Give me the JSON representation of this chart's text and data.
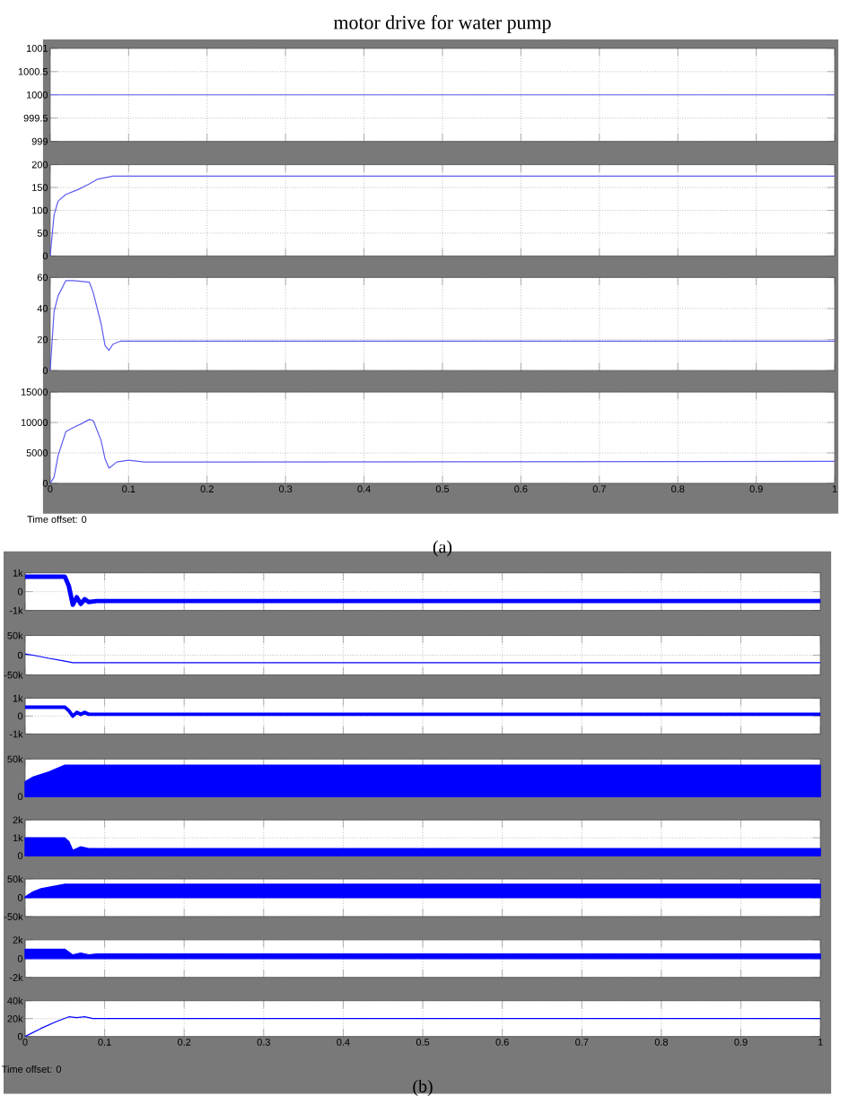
{
  "chart_data": [
    {
      "type": "line",
      "title": "motor drive for water pump",
      "xlim": [
        0,
        1
      ],
      "xticks": [
        0,
        0.1,
        0.2,
        0.3,
        0.4,
        0.5,
        0.6,
        0.7,
        0.8,
        0.9,
        1
      ],
      "ylim": [
        999,
        1001
      ],
      "yticks": [
        999,
        999.5,
        1000,
        1000.5,
        1001
      ],
      "grid": true,
      "tick_labels": "y",
      "series": [
        {
          "color": "#5c5cf0",
          "x": [
            0,
            1
          ],
          "values": [
            1000,
            1000
          ]
        }
      ]
    },
    {
      "type": "line",
      "xlim": [
        0,
        1
      ],
      "xticks": [
        0,
        0.1,
        0.2,
        0.3,
        0.4,
        0.5,
        0.6,
        0.7,
        0.8,
        0.9,
        1
      ],
      "ylim": [
        0,
        200
      ],
      "yticks": [
        0,
        50,
        100,
        150,
        200
      ],
      "grid": true,
      "tick_labels": "y",
      "series": [
        {
          "color": "#5c5cf0",
          "x": [
            0,
            0.005,
            0.01,
            0.02,
            0.035,
            0.05,
            0.06,
            0.08,
            1
          ],
          "values": [
            0,
            90,
            120,
            135,
            145,
            158,
            168,
            175,
            175
          ]
        }
      ]
    },
    {
      "type": "line",
      "xlim": [
        0,
        1
      ],
      "xticks": [
        0,
        0.1,
        0.2,
        0.3,
        0.4,
        0.5,
        0.6,
        0.7,
        0.8,
        0.9,
        1
      ],
      "ylim": [
        0,
        60
      ],
      "yticks": [
        0,
        20,
        40,
        60
      ],
      "grid": true,
      "tick_labels": "y",
      "series": [
        {
          "color": "#5c5cf0",
          "x": [
            0,
            0.005,
            0.01,
            0.02,
            0.03,
            0.05,
            0.055,
            0.065,
            0.07,
            0.075,
            0.08,
            0.09,
            0.1,
            1
          ],
          "values": [
            0,
            38,
            48,
            58,
            58,
            57,
            50,
            30,
            16,
            13,
            17,
            19,
            19,
            19
          ]
        }
      ]
    },
    {
      "type": "line",
      "xlim": [
        0,
        1
      ],
      "xticks": [
        0,
        0.1,
        0.2,
        0.3,
        0.4,
        0.5,
        0.6,
        0.7,
        0.8,
        0.9,
        1
      ],
      "ylim": [
        0,
        15000
      ],
      "yticks": [
        0,
        5000,
        10000,
        15000
      ],
      "grid": true,
      "annotations": [
        "Time offset:  0",
        "(a)"
      ],
      "series": [
        {
          "color": "#5c5cf0",
          "x": [
            0,
            0.005,
            0.01,
            0.02,
            0.03,
            0.04,
            0.05,
            0.055,
            0.065,
            0.07,
            0.075,
            0.085,
            0.1,
            0.12,
            1
          ],
          "values": [
            0,
            1000,
            4500,
            8500,
            9200,
            9800,
            10500,
            10300,
            7000,
            4000,
            2500,
            3500,
            3800,
            3500,
            3600
          ]
        }
      ]
    },
    {
      "type": "line",
      "xlim": [
        0,
        1
      ],
      "xticks": [
        0,
        0.1,
        0.2,
        0.3,
        0.4,
        0.5,
        0.6,
        0.7,
        0.8,
        0.9,
        1
      ],
      "ylim": [
        -1000,
        1000
      ],
      "yticks": [
        {
          "value": -1000,
          "label": "-1k"
        },
        0,
        {
          "value": 1000,
          "label": "1k"
        }
      ],
      "grid": true,
      "tick_labels": "y",
      "series": [
        {
          "color": "#0000ff",
          "x": [
            0,
            0.05,
            0.055,
            0.06,
            0.065,
            0.07,
            0.075,
            0.08,
            0.09,
            0.1,
            1
          ],
          "values": [
            800,
            800,
            300,
            -700,
            -300,
            -650,
            -400,
            -550,
            -500,
            -500,
            -500
          ]
        }
      ]
    },
    {
      "type": "line",
      "xlim": [
        0,
        1
      ],
      "xticks": [
        0,
        0.1,
        0.2,
        0.3,
        0.4,
        0.5,
        0.6,
        0.7,
        0.8,
        0.9,
        1
      ],
      "ylim": [
        -50000,
        50000
      ],
      "yticks": [
        {
          "value": -50000,
          "label": "-50k"
        },
        0,
        {
          "value": 50000,
          "label": "50k"
        }
      ],
      "grid": true,
      "tick_labels": "y",
      "series": [
        {
          "color": "#0000ff",
          "x": [
            0,
            0.01,
            0.03,
            0.05,
            0.06,
            1
          ],
          "values": [
            3000,
            0,
            -8000,
            -15000,
            -19000,
            -19000
          ]
        }
      ]
    },
    {
      "type": "line",
      "xlim": [
        0,
        1
      ],
      "xticks": [
        0,
        0.1,
        0.2,
        0.3,
        0.4,
        0.5,
        0.6,
        0.7,
        0.8,
        0.9,
        1
      ],
      "ylim": [
        -1000,
        1000
      ],
      "yticks": [
        {
          "value": -1000,
          "label": "-1k"
        },
        0,
        {
          "value": 1000,
          "label": "1k"
        }
      ],
      "grid": true,
      "tick_labels": "y",
      "series": [
        {
          "color": "#0000ff",
          "x": [
            0,
            0.05,
            0.055,
            0.06,
            0.065,
            0.07,
            0.075,
            0.08,
            0.09,
            0.1,
            1
          ],
          "values": [
            500,
            500,
            300,
            0,
            200,
            100,
            200,
            100,
            100,
            100,
            100
          ]
        }
      ]
    },
    {
      "type": "area",
      "xlim": [
        0,
        1
      ],
      "xticks": [
        0,
        0.1,
        0.2,
        0.3,
        0.4,
        0.5,
        0.6,
        0.7,
        0.8,
        0.9,
        1
      ],
      "ylim": [
        0,
        50000
      ],
      "yticks": [
        0,
        {
          "value": 50000,
          "label": "50k"
        }
      ],
      "grid": true,
      "tick_labels": "y",
      "series": [
        {
          "color": "#0000ff",
          "x": [
            0,
            0.01,
            0.03,
            0.05,
            0.06,
            1
          ],
          "values": [
            20000,
            26000,
            33000,
            42000,
            42000,
            42000
          ]
        }
      ]
    },
    {
      "type": "area",
      "xlim": [
        0,
        1
      ],
      "xticks": [
        0,
        0.1,
        0.2,
        0.3,
        0.4,
        0.5,
        0.6,
        0.7,
        0.8,
        0.9,
        1
      ],
      "ylim": [
        0,
        2000
      ],
      "yticks": [
        0,
        {
          "value": 1000,
          "label": "1k"
        },
        {
          "value": 2000,
          "label": "2k"
        }
      ],
      "grid": true,
      "tick_labels": "y",
      "series": [
        {
          "color": "#0000ff",
          "x": [
            0,
            0.05,
            0.055,
            0.06,
            0.07,
            0.08,
            0.09,
            0.1,
            1
          ],
          "values": [
            1000,
            1000,
            800,
            300,
            500,
            400,
            400,
            400,
            400
          ]
        }
      ]
    },
    {
      "type": "area",
      "xlim": [
        0,
        1
      ],
      "xticks": [
        0,
        0.1,
        0.2,
        0.3,
        0.4,
        0.5,
        0.6,
        0.7,
        0.8,
        0.9,
        1
      ],
      "ylim": [
        -50000,
        50000
      ],
      "yticks": [
        {
          "value": -50000,
          "label": "-50k"
        },
        0,
        {
          "value": 50000,
          "label": "50k"
        }
      ],
      "grid": true,
      "tick_labels": "y",
      "series": [
        {
          "color": "#0000ff",
          "x": [
            0,
            0.01,
            0.02,
            0.05,
            1
          ],
          "values": [
            2000,
            16000,
            24000,
            36000,
            36000
          ]
        }
      ]
    },
    {
      "type": "area",
      "xlim": [
        0,
        1
      ],
      "xticks": [
        0,
        0.1,
        0.2,
        0.3,
        0.4,
        0.5,
        0.6,
        0.7,
        0.8,
        0.9,
        1
      ],
      "ylim": [
        -2000,
        2000
      ],
      "yticks": [
        {
          "value": -2000,
          "label": "-2k"
        },
        0,
        {
          "value": 2000,
          "label": "2k"
        }
      ],
      "grid": true,
      "tick_labels": "y",
      "series": [
        {
          "color": "#0000ff",
          "x": [
            0,
            0.05,
            0.055,
            0.06,
            0.07,
            0.08,
            0.09,
            0.1,
            1
          ],
          "values": [
            1000,
            1000,
            700,
            400,
            600,
            400,
            500,
            500,
            500
          ]
        }
      ]
    },
    {
      "type": "line",
      "xlim": [
        0,
        1
      ],
      "xticks": [
        0,
        0.1,
        0.2,
        0.3,
        0.4,
        0.5,
        0.6,
        0.7,
        0.8,
        0.9,
        1
      ],
      "ylim": [
        0,
        40000
      ],
      "yticks": [
        0,
        {
          "value": 20000,
          "label": "20k"
        },
        {
          "value": 40000,
          "label": "40k"
        }
      ],
      "grid": true,
      "annotations": [
        "Time offset:  0",
        "(b)"
      ],
      "series": [
        {
          "color": "#0000ff",
          "x": [
            0,
            0.02,
            0.04,
            0.055,
            0.065,
            0.075,
            0.085,
            1
          ],
          "values": [
            0,
            9000,
            17000,
            22000,
            21000,
            22000,
            20000,
            20000
          ]
        }
      ]
    }
  ]
}
